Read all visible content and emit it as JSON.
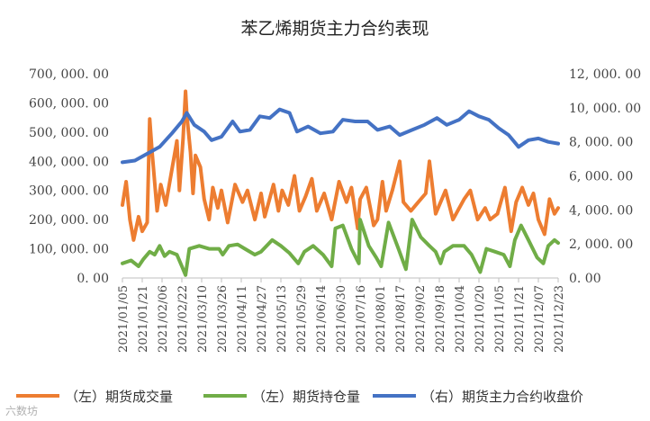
{
  "chart_data": {
    "type": "line",
    "title": "苯乙烯期货主力合约表现",
    "watermark": "六数坊",
    "y_left": {
      "ylim": [
        0,
        700000
      ],
      "ticks": [
        "700, 000. 00",
        "600, 000. 00",
        "500, 000. 00",
        "400, 000. 00",
        "300, 000. 00",
        "200, 000. 00",
        "100, 000. 00",
        "0. 00"
      ]
    },
    "y_right": {
      "ylim": [
        0,
        12000
      ],
      "ticks": [
        "12, 000. 00",
        "10, 000. 00",
        "8, 000. 00",
        "6, 000. 00",
        "4, 000. 00",
        "2, 000. 00",
        "0. 00"
      ]
    },
    "x_ticks": [
      "2021/01/05",
      "2021/01/21",
      "2021/02/06",
      "2021/02/22",
      "2021/03/10",
      "2021/03/26",
      "2021/04/11",
      "2021/04/27",
      "2021/05/13",
      "2021/05/29",
      "2021/06/14",
      "2021/06/30",
      "2021/07/16",
      "2021/08/01",
      "2021/08/17",
      "2021/09/02",
      "2021/09/18",
      "2021/10/04",
      "2021/10/20",
      "2021/11/05",
      "2021/11/21",
      "2021/12/07",
      "2021/12/23"
    ],
    "legend_position": "bottom",
    "grid": false,
    "series": [
      {
        "name": "（左）期货成交量",
        "axis": "left",
        "color": "#ED7D31",
        "points": [
          [
            "2021/01/05",
            250000
          ],
          [
            "2021/01/08",
            330000
          ],
          [
            "2021/01/11",
            200000
          ],
          [
            "2021/01/14",
            130000
          ],
          [
            "2021/01/18",
            210000
          ],
          [
            "2021/01/21",
            160000
          ],
          [
            "2021/01/25",
            190000
          ],
          [
            "2021/01/27",
            545000
          ],
          [
            "2021/01/29",
            430000
          ],
          [
            "2021/02/02",
            230000
          ],
          [
            "2021/02/05",
            320000
          ],
          [
            "2021/02/09",
            250000
          ],
          [
            "2021/02/18",
            470000
          ],
          [
            "2021/02/20",
            300000
          ],
          [
            "2021/02/23",
            480000
          ],
          [
            "2021/02/25",
            640000
          ],
          [
            "2021/02/26",
            560000
          ],
          [
            "2021/03/01",
            430000
          ],
          [
            "2021/03/03",
            290000
          ],
          [
            "2021/03/05",
            420000
          ],
          [
            "2021/03/09",
            380000
          ],
          [
            "2021/03/12",
            270000
          ],
          [
            "2021/03/16",
            200000
          ],
          [
            "2021/03/19",
            310000
          ],
          [
            "2021/03/23",
            240000
          ],
          [
            "2021/03/26",
            300000
          ],
          [
            "2021/03/31",
            190000
          ],
          [
            "2021/04/06",
            320000
          ],
          [
            "2021/04/12",
            260000
          ],
          [
            "2021/04/16",
            300000
          ],
          [
            "2021/04/22",
            200000
          ],
          [
            "2021/04/27",
            290000
          ],
          [
            "2021/04/30",
            210000
          ],
          [
            "2021/05/07",
            320000
          ],
          [
            "2021/05/11",
            230000
          ],
          [
            "2021/05/14",
            300000
          ],
          [
            "2021/05/19",
            250000
          ],
          [
            "2021/05/24",
            350000
          ],
          [
            "2021/05/28",
            230000
          ],
          [
            "2021/06/02",
            280000
          ],
          [
            "2021/06/07",
            340000
          ],
          [
            "2021/06/11",
            230000
          ],
          [
            "2021/06/17",
            290000
          ],
          [
            "2021/06/23",
            200000
          ],
          [
            "2021/06/29",
            330000
          ],
          [
            "2021/07/05",
            260000
          ],
          [
            "2021/07/09",
            310000
          ],
          [
            "2021/07/14",
            170000
          ],
          [
            "2021/07/16",
            270000
          ],
          [
            "2021/07/21",
            310000
          ],
          [
            "2021/07/27",
            180000
          ],
          [
            "2021/07/30",
            200000
          ],
          [
            "2021/08/03",
            330000
          ],
          [
            "2021/08/06",
            230000
          ],
          [
            "2021/08/11",
            300000
          ],
          [
            "2021/08/17",
            400000
          ],
          [
            "2021/08/20",
            260000
          ],
          [
            "2021/08/26",
            230000
          ],
          [
            "2021/09/01",
            260000
          ],
          [
            "2021/09/07",
            290000
          ],
          [
            "2021/09/10",
            400000
          ],
          [
            "2021/09/15",
            220000
          ],
          [
            "2021/09/23",
            300000
          ],
          [
            "2021/09/29",
            200000
          ],
          [
            "2021/10/08",
            270000
          ],
          [
            "2021/10/13",
            300000
          ],
          [
            "2021/10/19",
            200000
          ],
          [
            "2021/10/25",
            240000
          ],
          [
            "2021/10/29",
            200000
          ],
          [
            "2021/11/04",
            220000
          ],
          [
            "2021/11/10",
            310000
          ],
          [
            "2021/11/15",
            160000
          ],
          [
            "2021/11/19",
            260000
          ],
          [
            "2021/11/24",
            310000
          ],
          [
            "2021/11/29",
            250000
          ],
          [
            "2021/12/03",
            290000
          ],
          [
            "2021/12/07",
            200000
          ],
          [
            "2021/12/12",
            150000
          ],
          [
            "2021/12/16",
            270000
          ],
          [
            "2021/12/20",
            220000
          ],
          [
            "2021/12/23",
            240000
          ]
        ]
      },
      {
        "name": "（左）期货持仓量",
        "axis": "left",
        "color": "#70AD47",
        "points": [
          [
            "2021/01/05",
            50000
          ],
          [
            "2021/01/12",
            60000
          ],
          [
            "2021/01/18",
            40000
          ],
          [
            "2021/01/22",
            65000
          ],
          [
            "2021/01/27",
            90000
          ],
          [
            "2021/01/31",
            80000
          ],
          [
            "2021/02/04",
            110000
          ],
          [
            "2021/02/08",
            75000
          ],
          [
            "2021/02/12",
            90000
          ],
          [
            "2021/02/18",
            80000
          ],
          [
            "2021/02/22",
            40000
          ],
          [
            "2021/02/25",
            10000
          ],
          [
            "2021/02/28",
            100000
          ],
          [
            "2021/03/08",
            110000
          ],
          [
            "2021/03/16",
            100000
          ],
          [
            "2021/03/24",
            100000
          ],
          [
            "2021/03/27",
            80000
          ],
          [
            "2021/04/01",
            110000
          ],
          [
            "2021/04/08",
            115000
          ],
          [
            "2021/04/14",
            100000
          ],
          [
            "2021/04/22",
            80000
          ],
          [
            "2021/04/27",
            90000
          ],
          [
            "2021/05/06",
            130000
          ],
          [
            "2021/05/13",
            110000
          ],
          [
            "2021/05/20",
            85000
          ],
          [
            "2021/05/27",
            50000
          ],
          [
            "2021/06/01",
            90000
          ],
          [
            "2021/06/08",
            110000
          ],
          [
            "2021/06/16",
            80000
          ],
          [
            "2021/06/23",
            40000
          ],
          [
            "2021/06/26",
            170000
          ],
          [
            "2021/07/02",
            180000
          ],
          [
            "2021/07/09",
            100000
          ],
          [
            "2021/07/15",
            50000
          ],
          [
            "2021/07/16",
            200000
          ],
          [
            "2021/07/23",
            110000
          ],
          [
            "2021/07/29",
            70000
          ],
          [
            "2021/08/02",
            40000
          ],
          [
            "2021/08/08",
            190000
          ],
          [
            "2021/08/16",
            100000
          ],
          [
            "2021/08/22",
            30000
          ],
          [
            "2021/08/27",
            200000
          ],
          [
            "2021/09/03",
            140000
          ],
          [
            "2021/09/10",
            110000
          ],
          [
            "2021/09/15",
            90000
          ],
          [
            "2021/09/19",
            50000
          ],
          [
            "2021/09/22",
            90000
          ],
          [
            "2021/09/29",
            110000
          ],
          [
            "2021/10/08",
            110000
          ],
          [
            "2021/10/14",
            80000
          ],
          [
            "2021/10/21",
            20000
          ],
          [
            "2021/10/26",
            100000
          ],
          [
            "2021/11/02",
            90000
          ],
          [
            "2021/11/09",
            80000
          ],
          [
            "2021/11/14",
            40000
          ],
          [
            "2021/11/18",
            130000
          ],
          [
            "2021/11/23",
            180000
          ],
          [
            "2021/11/29",
            130000
          ],
          [
            "2021/12/06",
            70000
          ],
          [
            "2021/12/11",
            50000
          ],
          [
            "2021/12/15",
            110000
          ],
          [
            "2021/12/20",
            130000
          ],
          [
            "2021/12/23",
            120000
          ]
        ]
      },
      {
        "name": "（右）期货主力合约收盘价",
        "axis": "right",
        "color": "#4472C4",
        "points": [
          [
            "2021/01/05",
            6800
          ],
          [
            "2021/01/15",
            6900
          ],
          [
            "2021/01/25",
            7300
          ],
          [
            "2021/02/04",
            7700
          ],
          [
            "2021/02/14",
            8500
          ],
          [
            "2021/02/22",
            9200
          ],
          [
            "2021/02/26",
            9700
          ],
          [
            "2021/03/04",
            9000
          ],
          [
            "2021/03/12",
            8600
          ],
          [
            "2021/03/18",
            8100
          ],
          [
            "2021/03/26",
            8300
          ],
          [
            "2021/04/04",
            9200
          ],
          [
            "2021/04/10",
            8600
          ],
          [
            "2021/04/18",
            8700
          ],
          [
            "2021/04/26",
            9500
          ],
          [
            "2021/05/04",
            9400
          ],
          [
            "2021/05/12",
            9900
          ],
          [
            "2021/05/20",
            9700
          ],
          [
            "2021/05/26",
            8600
          ],
          [
            "2021/06/04",
            8900
          ],
          [
            "2021/06/14",
            8500
          ],
          [
            "2021/06/24",
            8600
          ],
          [
            "2021/07/02",
            9300
          ],
          [
            "2021/07/12",
            9200
          ],
          [
            "2021/07/22",
            9200
          ],
          [
            "2021/07/30",
            8700
          ],
          [
            "2021/08/09",
            8900
          ],
          [
            "2021/08/17",
            8400
          ],
          [
            "2021/08/27",
            8700
          ],
          [
            "2021/09/06",
            9000
          ],
          [
            "2021/09/16",
            9400
          ],
          [
            "2021/09/24",
            9000
          ],
          [
            "2021/10/04",
            9300
          ],
          [
            "2021/10/12",
            9800
          ],
          [
            "2021/10/20",
            9500
          ],
          [
            "2021/10/28",
            9300
          ],
          [
            "2021/11/05",
            8800
          ],
          [
            "2021/11/13",
            8400
          ],
          [
            "2021/11/21",
            7700
          ],
          [
            "2021/11/29",
            8100
          ],
          [
            "2021/12/07",
            8200
          ],
          [
            "2021/12/15",
            8000
          ],
          [
            "2021/12/23",
            7900
          ]
        ]
      }
    ]
  }
}
